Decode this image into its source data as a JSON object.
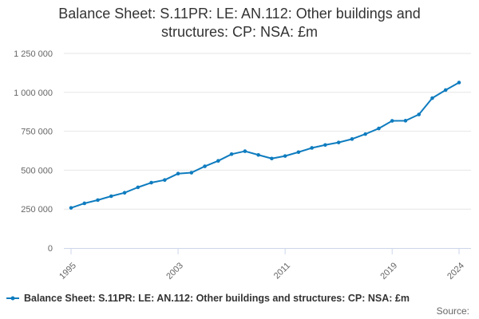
{
  "chart_data": {
    "type": "line",
    "title": "Balance Sheet: S.11PR: LE: AN.112: Other buildings and structures: CP: NSA: £m",
    "title_lines": [
      "Balance Sheet: S.11PR: LE: AN.112: Other buildings and",
      "structures: CP: NSA: £m"
    ],
    "xlabel": "",
    "ylabel": "",
    "x": [
      1995,
      1996,
      1997,
      1998,
      1999,
      2000,
      2001,
      2002,
      2003,
      2004,
      2005,
      2006,
      2007,
      2008,
      2009,
      2010,
      2011,
      2012,
      2013,
      2014,
      2015,
      2016,
      2017,
      2018,
      2019,
      2020,
      2021,
      2022,
      2023,
      2024
    ],
    "series": [
      {
        "name": "Balance Sheet: S.11PR: LE: AN.112: Other buildings and structures: CP: NSA: £m",
        "color": "#0f7cbf",
        "values": [
          258000,
          287000,
          308000,
          333000,
          355000,
          390000,
          420000,
          437000,
          478000,
          484000,
          525000,
          560000,
          603000,
          622000,
          598000,
          575000,
          591000,
          616000,
          643000,
          662000,
          678000,
          700000,
          732000,
          768000,
          817000,
          818000,
          858000,
          963000,
          1015000,
          1063000
        ]
      }
    ],
    "xticks": [
      1995,
      2003,
      2011,
      2019,
      2024
    ],
    "ylim": [
      0,
      1250000
    ],
    "yticks": [
      0,
      250000,
      500000,
      750000,
      1000000,
      1250000
    ],
    "ytick_labels": [
      "0",
      "250 000",
      "500 000",
      "750 000",
      "1 000 000",
      "1 250 000"
    ],
    "grid": true,
    "legend_position": "bottom"
  },
  "source_label": "Source:"
}
